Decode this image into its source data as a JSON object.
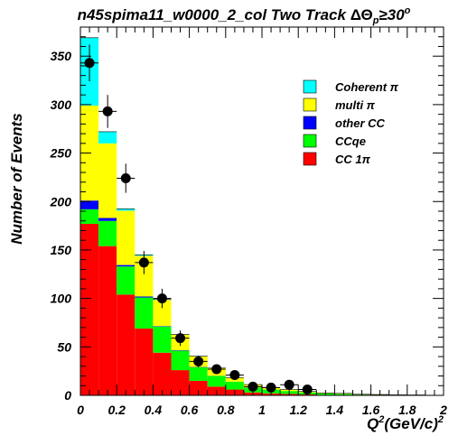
{
  "chart_data": {
    "type": "bar",
    "stacked": true,
    "title_main": "n45spima11_w0000_2_col Two Track ",
    "title_cut": "ΔΘ",
    "title_sub": "p",
    "title_rel": "≥30",
    "title_sup": "o",
    "xlabel_main": "Q",
    "xlabel_sup1": "2",
    "xlabel_rest": "(GeV/c)",
    "xlabel_sup2": "2",
    "ylabel": "Number of Events",
    "xlim": [
      0,
      2
    ],
    "ylim": [
      0,
      380
    ],
    "bin_width": 0.1,
    "bin_edges": [
      0,
      0.1,
      0.2,
      0.3,
      0.4,
      0.5,
      0.6,
      0.7,
      0.8,
      0.9,
      1.0,
      1.1,
      1.2,
      1.3,
      1.4,
      1.5,
      1.6,
      1.7,
      1.8,
      1.9,
      2.0
    ],
    "xticks": [
      "0",
      "0.2",
      "0.4",
      "0.6",
      "0.8",
      "1",
      "1.2",
      "1.4",
      "1.6",
      "1.8",
      "2"
    ],
    "yticks": [
      "0",
      "50",
      "100",
      "150",
      "200",
      "250",
      "300",
      "350"
    ],
    "series": [
      {
        "name": "CC 1π",
        "color": "#ff0000",
        "values": [
          177,
          154,
          104,
          69,
          44,
          26,
          15,
          9,
          6,
          3,
          2,
          1.5,
          1,
          0.5,
          0.5,
          0.3,
          0.2,
          0.1,
          0.1,
          0
        ]
      },
      {
        "name": "CCqe",
        "color": "#00ff00",
        "values": [
          15,
          26,
          29,
          32,
          27,
          20,
          14,
          11,
          8,
          5,
          4,
          3,
          2,
          1.5,
          1,
          0.5,
          0.5,
          0.3,
          0.2,
          0.1
        ]
      },
      {
        "name": "other CC",
        "color": "#0000ff",
        "values": [
          9,
          3,
          1.5,
          1,
          0.5,
          0.5,
          0.3,
          0.2,
          0.1,
          0.1,
          0,
          0,
          0,
          0,
          0,
          0,
          0,
          0,
          0,
          0
        ]
      },
      {
        "name": "multi π",
        "color": "#ffff00",
        "values": [
          98,
          77,
          56,
          42,
          27,
          16,
          11,
          8,
          4,
          3,
          2,
          1.5,
          1,
          0.5,
          0.5,
          0.3,
          0.2,
          0.1,
          0.1,
          0
        ]
      },
      {
        "name": "Coherent π",
        "color": "#00ffff",
        "values": [
          70,
          12,
          2,
          1,
          0.5,
          0.3,
          0.2,
          0.1,
          0,
          0,
          0,
          0,
          0,
          0,
          0,
          0,
          0,
          0,
          0,
          0
        ]
      }
    ],
    "data_points": {
      "x": [
        0.05,
        0.15,
        0.25,
        0.35,
        0.45,
        0.55,
        0.65,
        0.75,
        0.85,
        0.95,
        1.05,
        1.15,
        1.25
      ],
      "y": [
        343,
        293,
        224,
        137,
        100,
        59,
        35,
        27,
        21,
        9,
        8,
        11,
        6
      ],
      "err": [
        19,
        17,
        15,
        12,
        10,
        8,
        6,
        5,
        5,
        3,
        3,
        3,
        2.5
      ]
    },
    "legend_order": [
      "Coherent π",
      "multi π",
      "other CC",
      "CCqe",
      "CC 1π"
    ],
    "legend_position": "top-right"
  }
}
